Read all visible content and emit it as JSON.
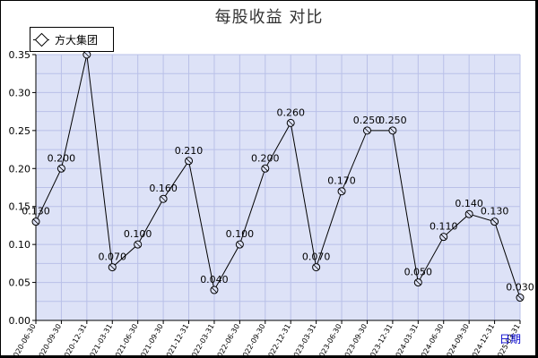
{
  "chart_data": {
    "type": "line",
    "title": "每股收益  对比",
    "x_unit_label": "日期",
    "categories": [
      "2020-06-30",
      "2020-09-30",
      "2020-12-31",
      "2021-03-31",
      "2021-06-30",
      "2021-09-30",
      "2021-12-31",
      "2022-03-31",
      "2022-06-30",
      "2022-09-30",
      "2022-12-31",
      "2023-03-31",
      "2023-06-30",
      "2023-09-30",
      "2023-12-31",
      "2024-03-31",
      "2024-06-30",
      "2024-09-30",
      "2024-12-31",
      "2025-03-31"
    ],
    "series": [
      {
        "name": "方大集团",
        "values": [
          0.13,
          0.2,
          0.35,
          0.07,
          0.1,
          0.16,
          0.21,
          0.04,
          0.1,
          0.2,
          0.26,
          0.07,
          0.17,
          0.25,
          0.25,
          0.05,
          0.11,
          0.14,
          0.13,
          0.03
        ],
        "data_labels": [
          "0.130",
          "0.200",
          "",
          "0.070",
          "0.100",
          "0.160",
          "0.210",
          "0.040",
          "0.100",
          "0.200",
          "0.260",
          "0.070",
          "0.170",
          "0.250",
          "0.250",
          "0.050",
          "0.110",
          "0.140",
          "0.130",
          "0.030"
        ]
      }
    ],
    "ylim": [
      0,
      0.35
    ],
    "yticks": [
      "0.00",
      "0.05",
      "0.10",
      "0.15",
      "0.20",
      "0.25",
      "0.30",
      "0.35"
    ],
    "grid": true,
    "legend_position": "top-left",
    "colors": {
      "plot_background": "#dde2f7",
      "grid": "#b9c0e8",
      "line": "#000000",
      "axis": "#000000"
    }
  }
}
